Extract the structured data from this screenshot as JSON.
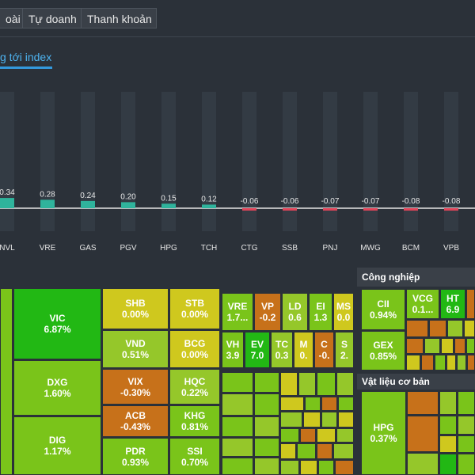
{
  "tabs": [
    {
      "label": "oài"
    },
    {
      "label": "Tự doanh"
    },
    {
      "label": "Thanh khoản"
    }
  ],
  "subtab": {
    "label": "g tới index"
  },
  "chart_data": {
    "type": "bar",
    "categories": [
      "NVL",
      "VRE",
      "GAS",
      "PGV",
      "HPG",
      "TCH",
      "CTG",
      "SSB",
      "PNJ",
      "MWG",
      "BCM",
      "VPB"
    ],
    "values": [
      0.34,
      0.28,
      0.24,
      0.2,
      0.15,
      0.12,
      -0.06,
      -0.06,
      -0.07,
      -0.07,
      -0.08,
      -0.08
    ],
    "value_labels": [
      "0.34",
      "0.28",
      "0.24",
      "0.20",
      "0.15",
      "0.12",
      "-0.06",
      "-0.06",
      "-0.07",
      "-0.07",
      "-0.08",
      "-0.08"
    ],
    "colors": {
      "positive": "#2fb39c",
      "negative": "#e0455a"
    }
  },
  "treemap": {
    "sectors": [
      {
        "title": "Công nghiệp"
      },
      {
        "title": "Vật liệu cơ bản"
      }
    ],
    "cells": [
      {
        "ticker": "VIC",
        "change": "6.87%"
      },
      {
        "ticker": "DXG",
        "change": "1.60%"
      },
      {
        "ticker": "DIG",
        "change": "1.17%"
      },
      {
        "ticker": "SHB",
        "change": "0.00%"
      },
      {
        "ticker": "VND",
        "change": "0.51%"
      },
      {
        "ticker": "VIX",
        "change": "-0.30%"
      },
      {
        "ticker": "ACB",
        "change": "-0.43%"
      },
      {
        "ticker": "PDR",
        "change": "0.93%"
      },
      {
        "ticker": "STB",
        "change": "0.00%"
      },
      {
        "ticker": "BCG",
        "change": "0.00%"
      },
      {
        "ticker": "HQC",
        "change": "0.22%"
      },
      {
        "ticker": "KHG",
        "change": "0.81%"
      },
      {
        "ticker": "SSI",
        "change": "0.70%"
      },
      {
        "ticker": "VRE",
        "change": "1.7..."
      },
      {
        "ticker": "VP",
        "change": "-0.2"
      },
      {
        "ticker": "LD",
        "change": "0.6"
      },
      {
        "ticker": "EI",
        "change": "1.3"
      },
      {
        "ticker": "MS",
        "change": "0.0"
      },
      {
        "ticker": "VH",
        "change": "3.9"
      },
      {
        "ticker": "EV",
        "change": "7.0"
      },
      {
        "ticker": "TC",
        "change": "0.3"
      },
      {
        "ticker": "M",
        "change": "0."
      },
      {
        "ticker": "C",
        "change": "-0."
      },
      {
        "ticker": "S",
        "change": "2."
      },
      {
        "ticker": "CII",
        "change": "0.94%"
      },
      {
        "ticker": "VCG",
        "change": "0.1..."
      },
      {
        "ticker": "HT",
        "change": "6.9"
      },
      {
        "ticker": "GEX",
        "change": "0.85%"
      },
      {
        "ticker": "HPG",
        "change": "0.37%"
      }
    ],
    "colors": {
      "strong_up": "#22b814",
      "up": "#7ac41a",
      "slight_up": "#95c72a",
      "flat": "#cfc81e",
      "down": "#c7711a"
    }
  }
}
